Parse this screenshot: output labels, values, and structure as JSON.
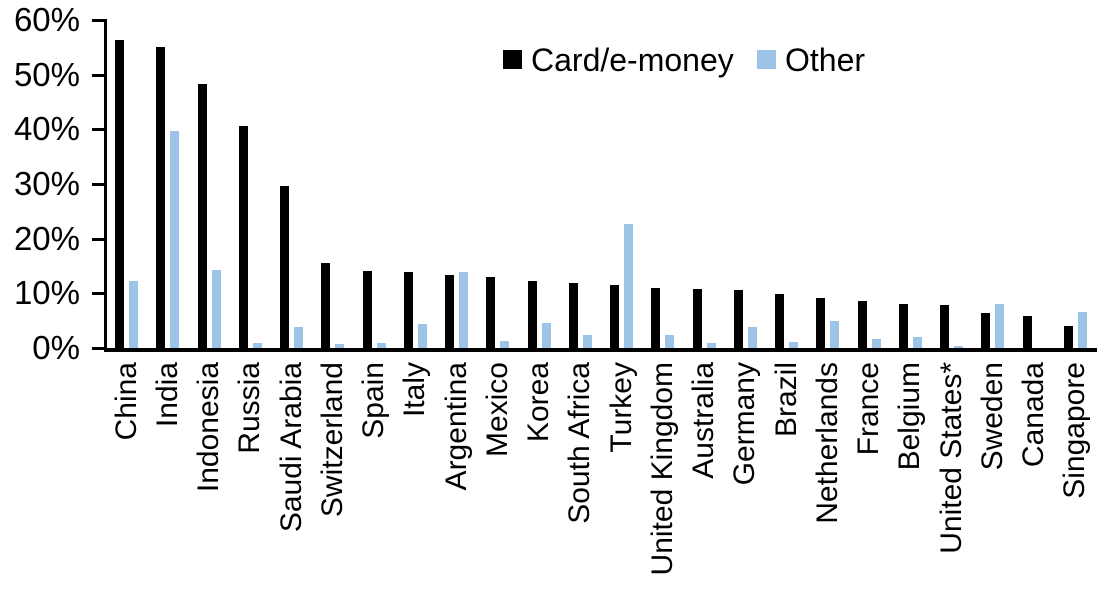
{
  "chart_data": {
    "type": "bar",
    "title": "",
    "xlabel": "",
    "ylabel": "",
    "ylim": [
      0,
      60
    ],
    "y_ticks": [
      "0%",
      "10%",
      "20%",
      "30%",
      "40%",
      "50%",
      "60%"
    ],
    "grid": false,
    "legend_position": "top-center",
    "categories": [
      "China",
      "India",
      "Indonesia",
      "Russia",
      "Saudi Arabia",
      "Switzerland",
      "Spain",
      "Italy",
      "Argentina",
      "Mexico",
      "Korea",
      "South Africa",
      "Turkey",
      "United Kingdom",
      "Australia",
      "Germany",
      "Brazil",
      "Netherlands",
      "France",
      "Belgium",
      "United States*",
      "Sweden",
      "Canada",
      "Singapore"
    ],
    "series": [
      {
        "name": "Card/e-money",
        "color": "#000000",
        "values": [
          56.4,
          55.0,
          48.3,
          40.6,
          29.7,
          15.5,
          14.1,
          13.9,
          13.3,
          12.9,
          12.3,
          11.8,
          11.6,
          11.0,
          10.8,
          10.6,
          9.9,
          9.2,
          8.6,
          8.1,
          7.8,
          6.4,
          5.9,
          4.0
        ]
      },
      {
        "name": "Other",
        "color": "#9DC3E6",
        "values": [
          12.2,
          39.7,
          14.3,
          1.0,
          3.8,
          0.7,
          0.9,
          4.3,
          13.9,
          1.3,
          4.5,
          2.4,
          22.6,
          2.4,
          1.0,
          3.8,
          1.1,
          4.9,
          1.6,
          2.1,
          0.3,
          8.0,
          0.0,
          6.6
        ]
      }
    ]
  }
}
